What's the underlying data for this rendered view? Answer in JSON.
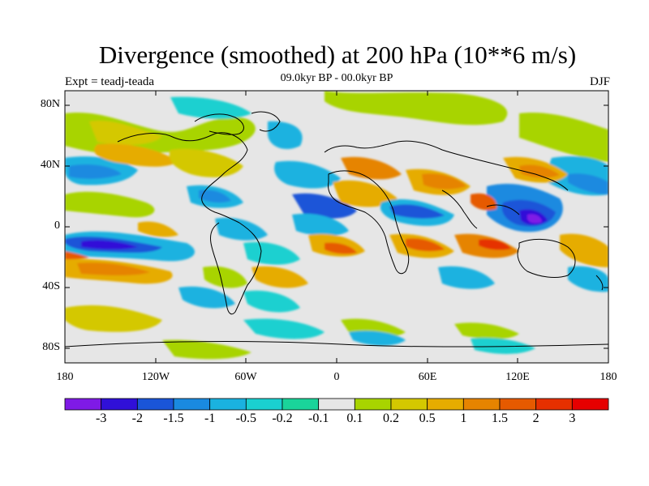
{
  "figure": {
    "title": "Divergence (smoothed) at 200 hPa (10**6 m/s)",
    "subtitle": "09.0kyr BP - 00.0kyr BP",
    "experiment": "Expt = teadj-teada",
    "season": "DJF"
  },
  "axes": {
    "y_ticks": [
      "80N",
      "40N",
      "0",
      "40S",
      "80S"
    ],
    "x_ticks": [
      "180",
      "120W",
      "60W",
      "0",
      "60E",
      "120E",
      "180"
    ],
    "lat_range": [
      -90,
      90
    ],
    "lon_range": [
      -180,
      180
    ]
  },
  "colorbar": {
    "labels": [
      "-3",
      "-2",
      "-1.5",
      "-1",
      "-0.5",
      "-0.2",
      "-0.1",
      "0.1",
      "0.2",
      "0.5",
      "1",
      "1.5",
      "2",
      "3"
    ],
    "colors": [
      "#7f1ae6",
      "#3010d8",
      "#1a55d8",
      "#1a8ae0",
      "#1ab2e0",
      "#1ad0d0",
      "#1ad49a",
      "#e6e6e6",
      "#a8d400",
      "#d4c800",
      "#e6ac00",
      "#e68400",
      "#e65a00",
      "#e63000",
      "#e60000"
    ]
  },
  "map_style": {
    "neutral_color": "#e6e6e6",
    "coastline_color": "#000000"
  }
}
